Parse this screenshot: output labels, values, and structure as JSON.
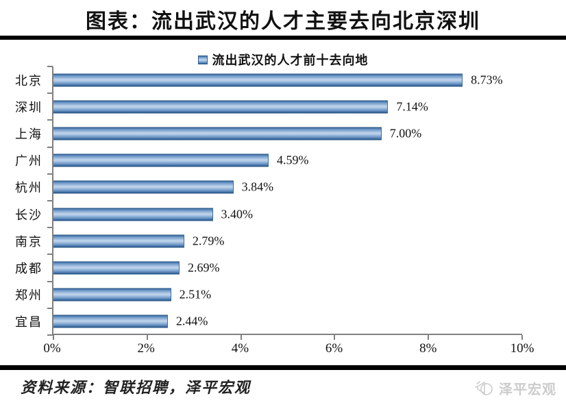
{
  "header": {
    "title": "图表：流出武汉的人才主要去向北京深圳"
  },
  "chart_data": {
    "type": "bar",
    "orientation": "horizontal",
    "title": "流出武汉的人才前十去向地",
    "legend": [
      "流出武汉的人才前十去向地"
    ],
    "legend_position": "top",
    "categories": [
      "北京",
      "深圳",
      "上海",
      "广州",
      "杭州",
      "长沙",
      "南京",
      "成都",
      "郑州",
      "宜昌"
    ],
    "values": [
      8.73,
      7.14,
      7.0,
      4.59,
      3.84,
      3.4,
      2.79,
      2.69,
      2.51,
      2.44
    ],
    "value_labels": [
      "8.73%",
      "7.14%",
      "7.00%",
      "4.59%",
      "3.84%",
      "3.40%",
      "2.79%",
      "2.69%",
      "2.51%",
      "2.44%"
    ],
    "xlabel": "",
    "ylabel": "",
    "xlim": [
      0,
      10
    ],
    "xtick_labels": [
      "0%",
      "2%",
      "4%",
      "6%",
      "8%",
      "10%"
    ],
    "xtick_values": [
      0,
      2,
      4,
      6,
      8,
      10
    ],
    "grid": false,
    "bar_color": "#4f81bd",
    "axis_color": "#808080"
  },
  "footer": {
    "source": "资料来源：智联招聘，泽平宏观",
    "logo_text": "泽平宏观",
    "logo_icon": "megaphone-icon",
    "logo_color": "#cccccc"
  }
}
